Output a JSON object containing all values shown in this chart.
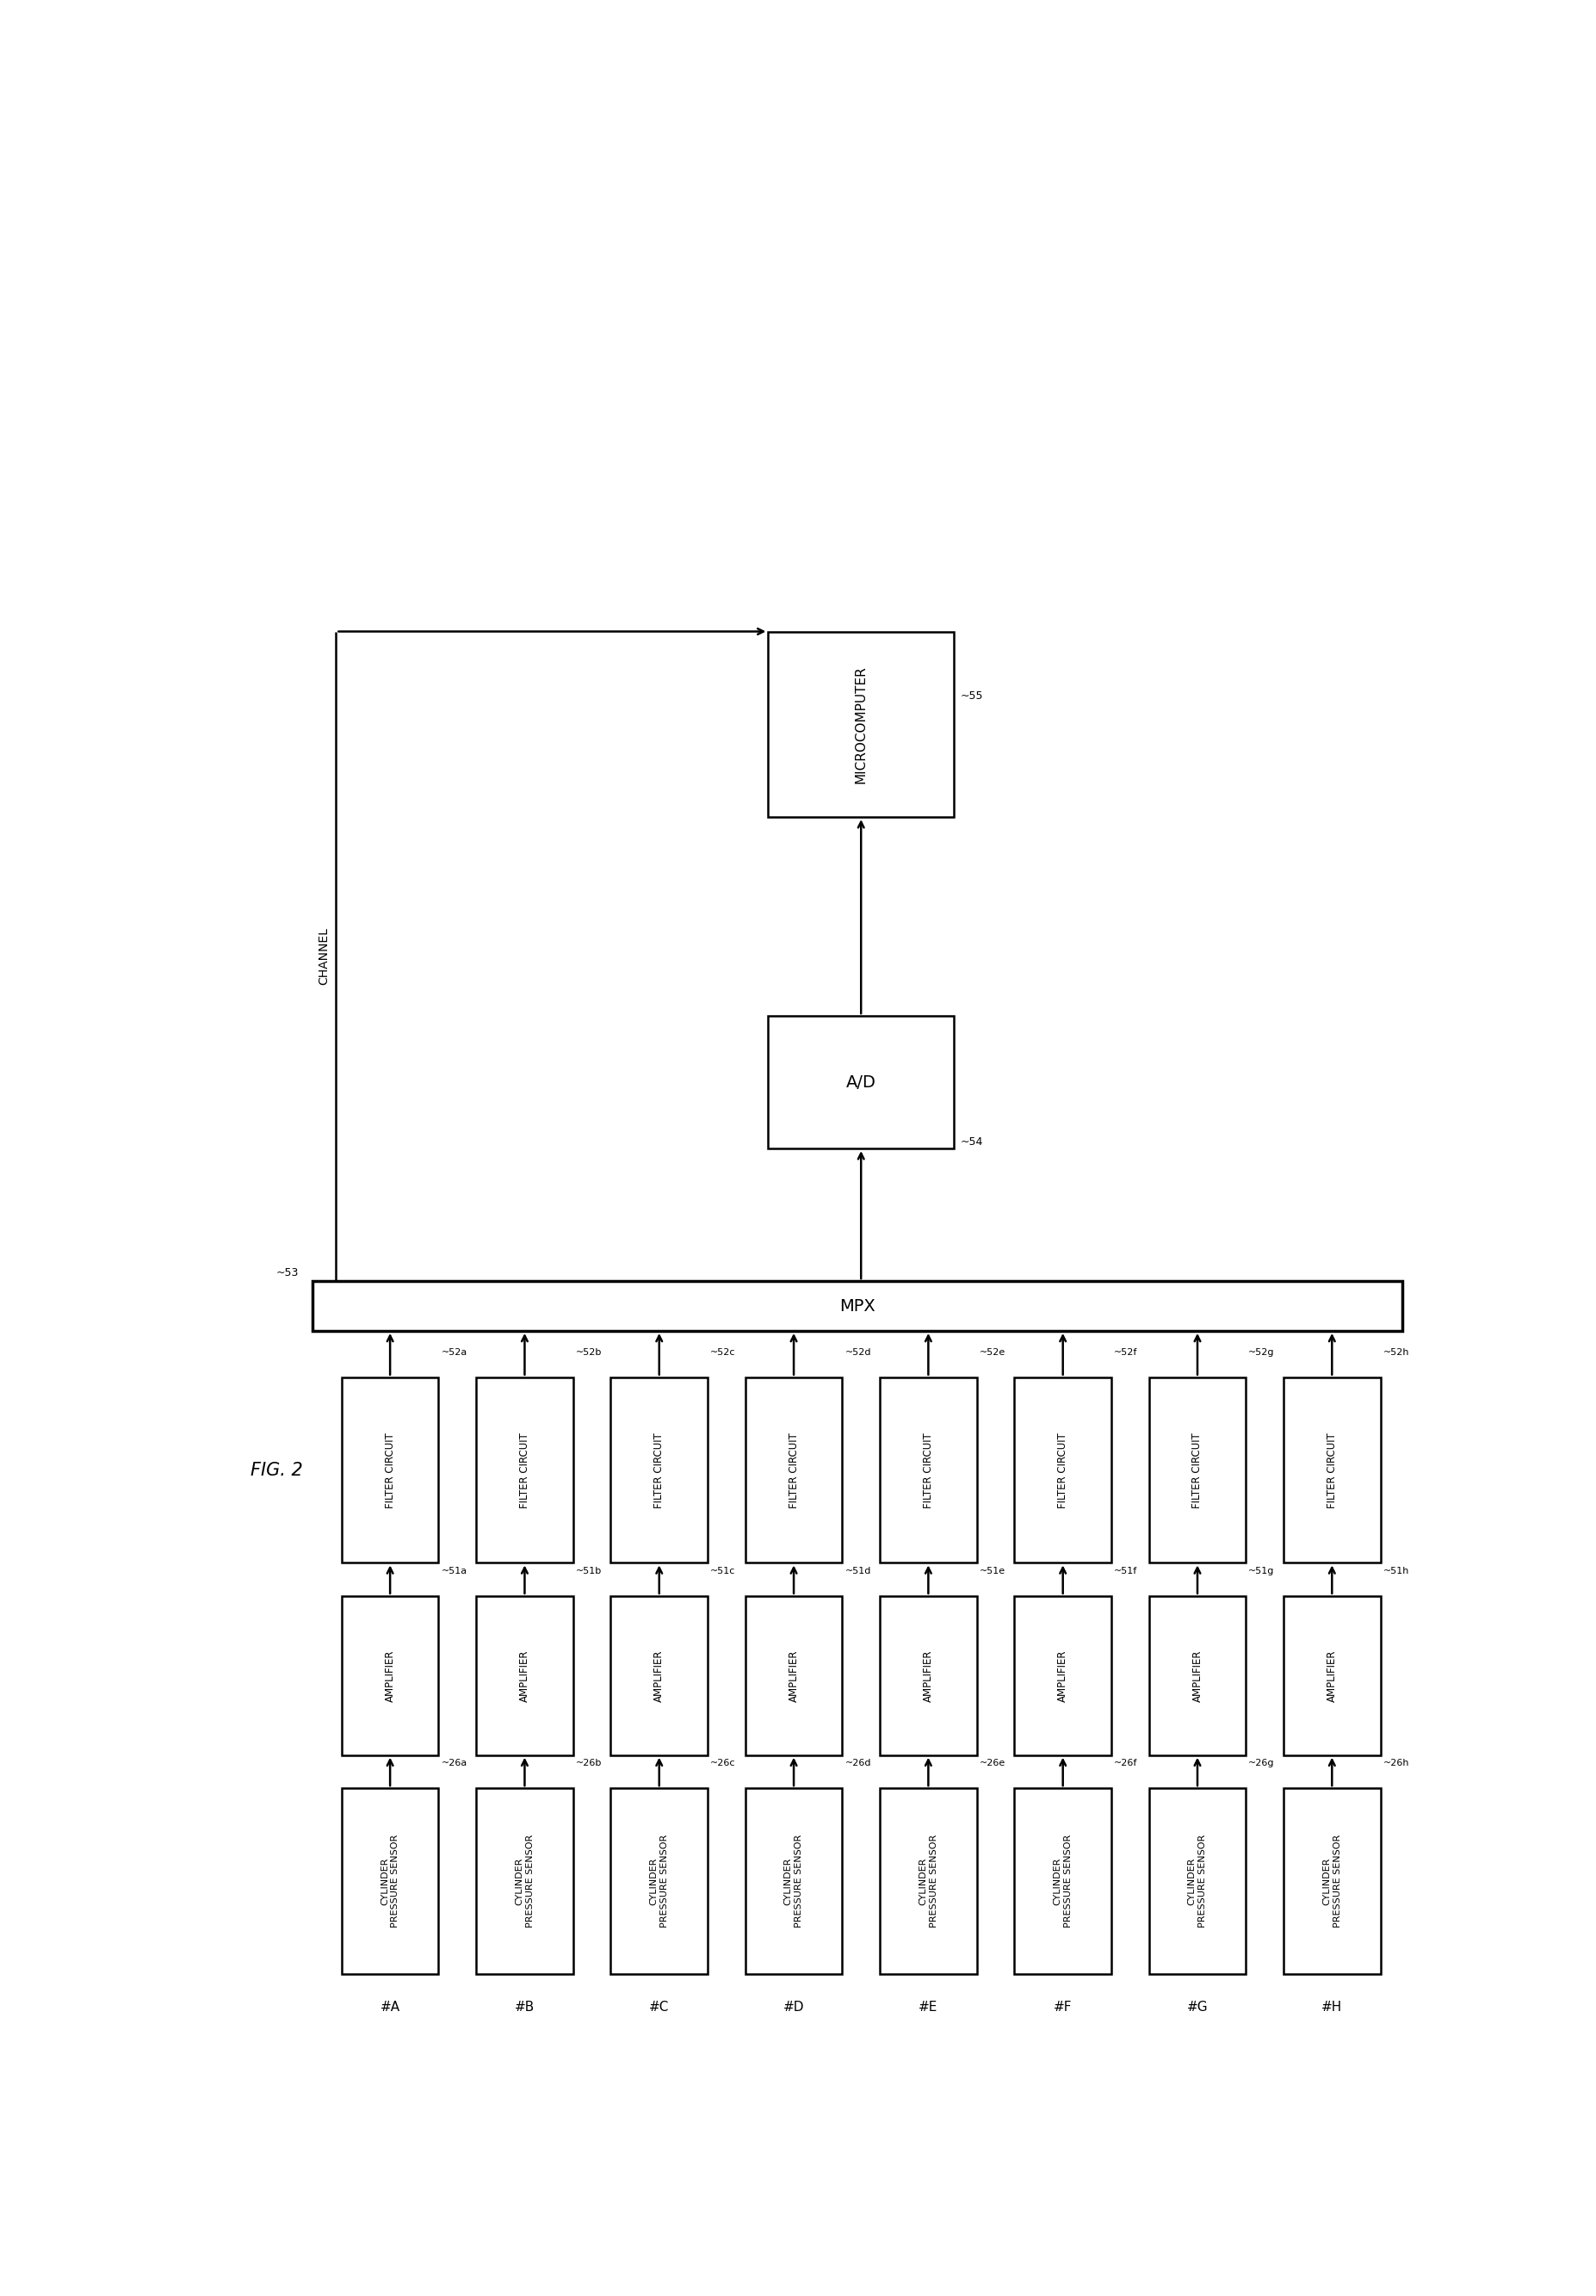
{
  "channels": [
    "#A",
    "#B",
    "#C",
    "#D",
    "#E",
    "#F",
    "#G",
    "#H"
  ],
  "channel_suffixes": [
    "a",
    "b",
    "c",
    "d",
    "e",
    "f",
    "g",
    "h"
  ],
  "sensor_label": "CYLINDER\nPRESSURE SENSOR",
  "amplifier_label": "AMPLIFIER",
  "filter_label": "FILTER CIRCUIT",
  "mpx_label": "MPX",
  "ad_label": "A/D",
  "micro_label": "MICROCOMPUTER",
  "channel_text": "CHANNEL",
  "sensor_prefix": "26",
  "amp_prefix": "51",
  "filter_prefix": "52",
  "mpx_num": "53",
  "ad_num": "54",
  "micro_num": "55",
  "fig_label": "FIG. 2",
  "bg_color": "#ffffff",
  "box_color": "#ffffff",
  "line_color": "#000000",
  "text_color": "#000000",
  "n_cols": 8,
  "fig_width": 18.54,
  "fig_height": 26.67
}
